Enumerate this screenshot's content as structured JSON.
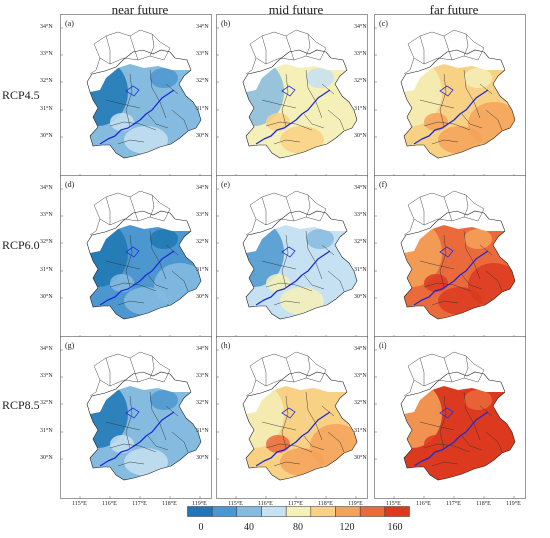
{
  "columns": [
    "near future",
    "mid future",
    "far future"
  ],
  "rows": [
    "RCP4.5",
    "RCP6.0",
    "RCP8.5"
  ],
  "panels": [
    {
      "label": "(a)",
      "level": 0.2
    },
    {
      "label": "(b)",
      "level": 0.45
    },
    {
      "label": "(c)",
      "level": 0.6
    },
    {
      "label": "(d)",
      "level": 0.1
    },
    {
      "label": "(e)",
      "level": 0.33
    },
    {
      "label": "(f)",
      "level": 0.85
    },
    {
      "label": "(g)",
      "level": 0.2
    },
    {
      "label": "(h)",
      "level": 0.68
    },
    {
      "label": "(i)",
      "level": 0.95
    }
  ],
  "lat_ticks": [
    "34°N",
    "33°N",
    "32°N",
    "31°N",
    "30°N"
  ],
  "lon_ticks": [
    "115°E",
    "116°E",
    "117°E",
    "118°E",
    "119°E"
  ],
  "colorbar": {
    "ticks": [
      "0",
      "40",
      "80",
      "120",
      "160"
    ],
    "colors": [
      "#1f78b4",
      "#4c97cf",
      "#86bbe0",
      "#c6e1f1",
      "#f4f0b8",
      "#f9d184",
      "#f4a25a",
      "#eb6a3b",
      "#dc3a20"
    ]
  }
}
